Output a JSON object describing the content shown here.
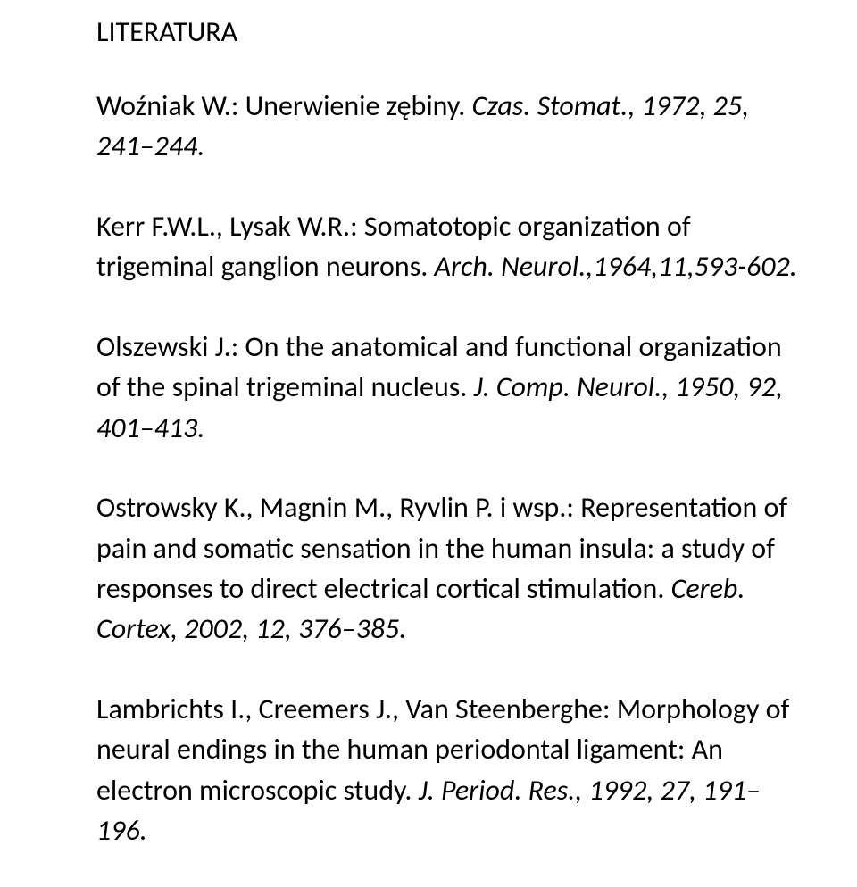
{
  "heading": "LITERATURA",
  "refs": [
    {
      "author": "Woźniak W.: ",
      "title_plain": "Unerwienie zębiny. ",
      "cite": "Czas. Stomat., 1972, 25, 241–244."
    },
    {
      "author": "Kerr F.W.L., Lysak W.R.: ",
      "title_plain": "Somatotopic organization of trigeminal ganglion neurons. ",
      "cite": "Arch. Neurol.,1964,11,593-602."
    },
    {
      "author": "Olszewski J.: ",
      "title_plain": "On the anatomical and functional organization of the spinal trigeminal nucleus. ",
      "cite": "J. Comp. Neurol., 1950, 92, 401–413."
    },
    {
      "author": "Ostrowsky K., Magnin M., Ryvlin P. i wsp.: ",
      "title_plain": "Representation of pain and somatic sensation in the human insula: a study of responses to direct electrical cortical stimulation. ",
      "cite": "Cereb. Cortex, 2002, 12, 376–385."
    },
    {
      "author": "Lambrichts I., Creemers J., Van Steenberghe: ",
      "title_plain": "Morphology of neural endings in the human periodontal ligament: An electron microscopic study. ",
      "cite": "J. Period. Res., 1992, 27, 191–196."
    }
  ]
}
